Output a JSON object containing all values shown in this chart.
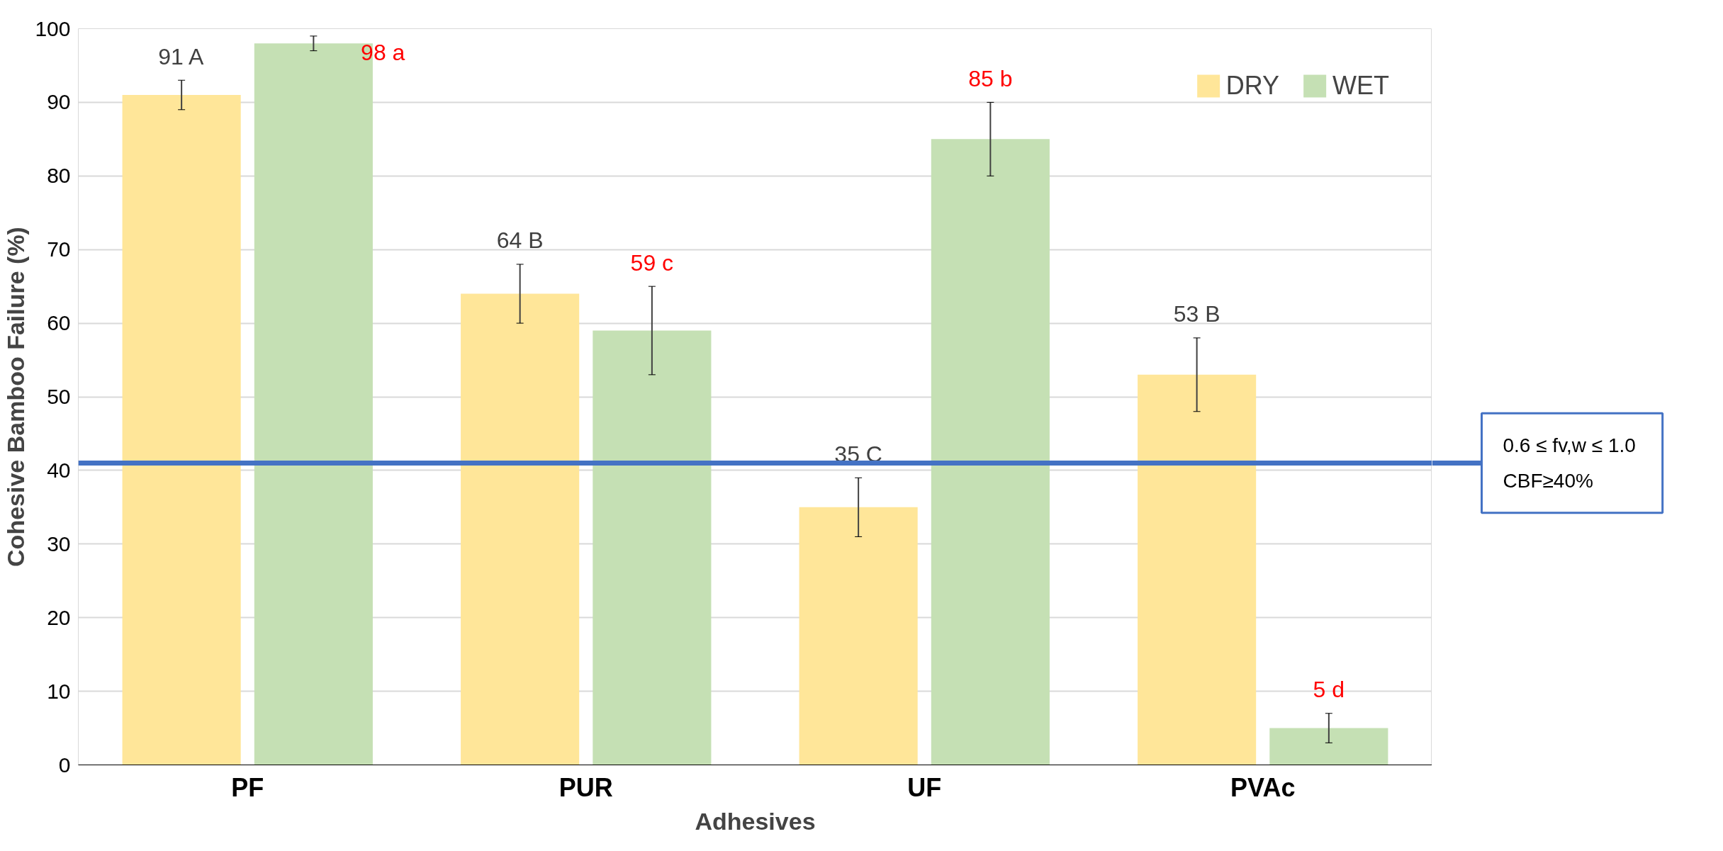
{
  "chart_data": {
    "type": "bar",
    "xlabel": "Adhesives",
    "ylabel": "Cohesive Bamboo Failure (%)",
    "categories": [
      "PF",
      "PUR",
      "UF",
      "PVAc"
    ],
    "series": [
      {
        "name": "DRY",
        "color": "#ffe699",
        "values": [
          91,
          64,
          35,
          53
        ],
        "errors": [
          2,
          4,
          4,
          5
        ],
        "value_labels": [
          "91 A",
          "64 B",
          "35 C",
          "53 B"
        ]
      },
      {
        "name": "WET",
        "color": "#c5e0b4",
        "values": [
          98,
          59,
          85,
          5
        ],
        "errors": [
          1,
          6,
          5,
          2
        ],
        "value_labels": [
          "98 a",
          "59 c",
          "85 b",
          "5 d"
        ]
      }
    ],
    "ylim": [
      0,
      100
    ],
    "yticks": [
      0,
      10,
      20,
      30,
      40,
      50,
      60,
      70,
      80,
      90,
      100
    ],
    "grid": "y",
    "legend": "top right",
    "ref_lines": [
      {
        "axis": "y",
        "value": 41,
        "label": "0.6 ≤ fv,w  ≤ 1.0\nCBF≥40%",
        "color": "#4472c4"
      }
    ]
  }
}
